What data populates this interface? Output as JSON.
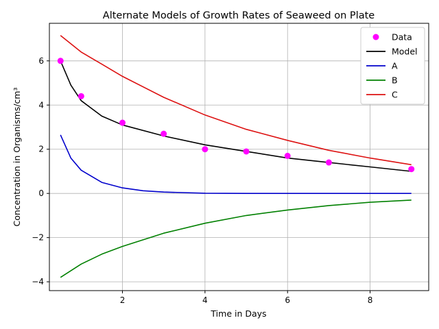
{
  "chart_data": {
    "type": "line",
    "title": "Alternate Models of Growth Rates of Seaweed on Plate",
    "xlabel": "Time in Days",
    "ylabel": "Concentration in Organisms/cm³",
    "xlim": [
      0.23,
      9.42
    ],
    "ylim": [
      -4.4,
      7.7
    ],
    "xticks": [
      2,
      4,
      6,
      8
    ],
    "yticks": [
      -4,
      -2,
      0,
      2,
      4,
      6
    ],
    "grid": true,
    "legend_position": "top-right",
    "data_points": {
      "name": "Data",
      "color": "#ff00ff",
      "x": [
        0.5,
        1,
        2,
        3,
        4,
        5,
        6,
        7,
        9
      ],
      "y": [
        6.0,
        4.4,
        3.2,
        2.7,
        2.0,
        1.9,
        1.7,
        1.4,
        1.1
      ]
    },
    "series": [
      {
        "name": "Model",
        "color": "#000000",
        "x": [
          0.5,
          0.75,
          1.0,
          1.5,
          2.0,
          3.0,
          4.0,
          5.0,
          6.0,
          7.0,
          8.0,
          9.0
        ],
        "y": [
          6.0,
          4.9,
          4.2,
          3.5,
          3.1,
          2.6,
          2.2,
          1.9,
          1.6,
          1.4,
          1.2,
          1.0
        ]
      },
      {
        "name": "A",
        "color": "#0000cc",
        "x": [
          0.5,
          0.75,
          1.0,
          1.5,
          2.0,
          2.5,
          3.0,
          4.0,
          5.0,
          6.0,
          9.0
        ],
        "y": [
          2.65,
          1.6,
          1.05,
          0.5,
          0.25,
          0.12,
          0.06,
          0.01,
          0.0,
          0.0,
          0.0
        ]
      },
      {
        "name": "B",
        "color": "#008000",
        "x": [
          0.5,
          1.0,
          1.5,
          2.0,
          3.0,
          4.0,
          5.0,
          6.0,
          7.0,
          8.0,
          9.0
        ],
        "y": [
          -3.8,
          -3.2,
          -2.75,
          -2.4,
          -1.8,
          -1.35,
          -1.0,
          -0.75,
          -0.55,
          -0.4,
          -0.3
        ]
      },
      {
        "name": "C",
        "color": "#dd1111",
        "x": [
          0.5,
          1.0,
          1.5,
          2.0,
          3.0,
          4.0,
          5.0,
          6.0,
          7.0,
          8.0,
          9.0
        ],
        "y": [
          7.15,
          6.4,
          5.85,
          5.3,
          4.35,
          3.55,
          2.9,
          2.4,
          1.95,
          1.6,
          1.3
        ]
      }
    ]
  }
}
